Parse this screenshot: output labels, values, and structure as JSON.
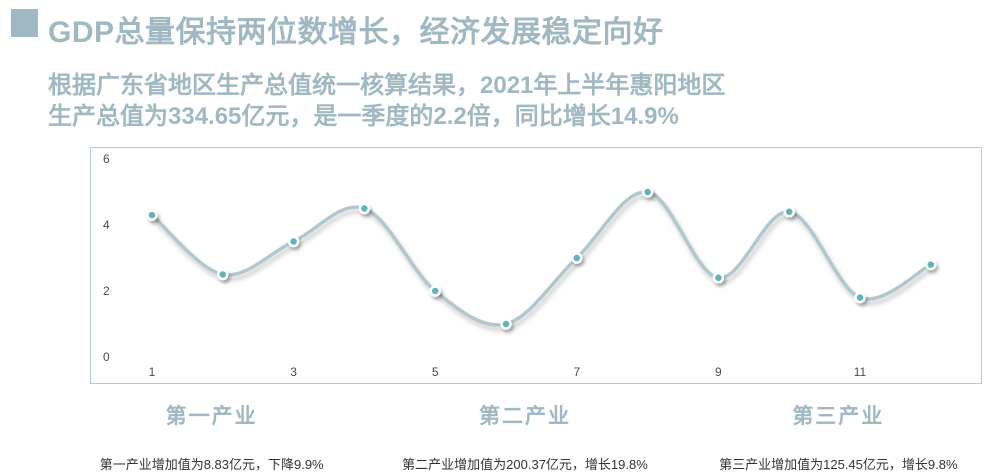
{
  "page": {
    "title": "GDP总量保持两位数增长，经济发展稳定向好",
    "subtitle_line1": "根据广东省地区生产总值统一核算结果，2021年上半年惠阳地区",
    "subtitle_line2": "生产总值为334.65亿元，是一季度的2.2倍，同比增长14.9%"
  },
  "colors": {
    "accent": "#9fb8c2",
    "chart_border": "#b3c9d2",
    "line": "#b0c7ce",
    "point_fill": "#5fb3ba",
    "point_ring": "#ffffff",
    "text_dark": "#333333",
    "tick_text": "#4a4a4a"
  },
  "chart_data": {
    "type": "line",
    "smooth": true,
    "grid": false,
    "title": "",
    "xlabel": "",
    "ylabel": "",
    "x": [
      1,
      2,
      3,
      4,
      5,
      6,
      7,
      8,
      9,
      10,
      11,
      12
    ],
    "values": [
      4.3,
      2.5,
      3.5,
      4.5,
      2.0,
      1.0,
      3.0,
      5.0,
      2.4,
      4.4,
      1.8,
      2.8
    ],
    "xlim": [
      1,
      12
    ],
    "ylim": [
      0,
      6
    ],
    "x_ticks": [
      1,
      3,
      5,
      7,
      9,
      11
    ],
    "x_tick_labels": [
      "1",
      "3",
      "5",
      "7",
      "9",
      "11"
    ],
    "y_ticks": [
      0,
      2,
      4,
      6
    ],
    "y_tick_labels": [
      "0",
      "2",
      "4",
      "6"
    ],
    "legend": []
  },
  "sectors": [
    {
      "name": "第一产业",
      "desc": "第一产业增加值为8.83亿元，下降9.9%"
    },
    {
      "name": "第二产业",
      "desc": "第二产业增加值为200.37亿元，增长19.8%"
    },
    {
      "name": "第三产业",
      "desc": "第三产业增加值为125.45亿元，增长9.8%"
    }
  ]
}
